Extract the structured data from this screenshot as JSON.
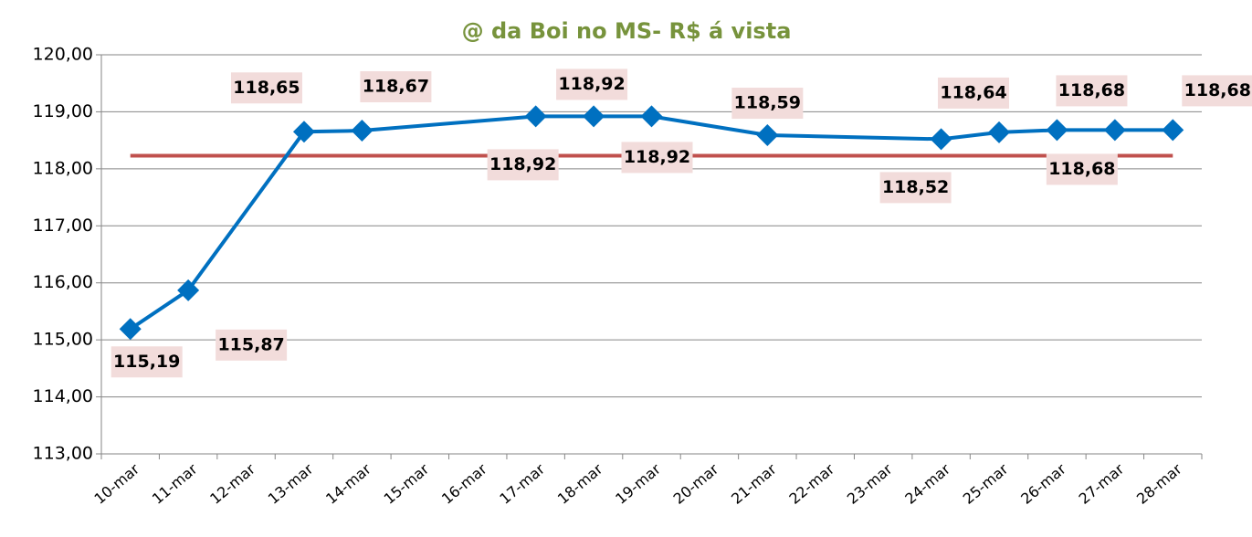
{
  "chart_data": {
    "type": "line",
    "title": "@ da Boi no MS- R$ á vista",
    "categories": [
      "10-mar",
      "11-mar",
      "12-mar",
      "13-mar",
      "14-mar",
      "15-mar",
      "16-mar",
      "17-mar",
      "18-mar",
      "19-mar",
      "20-mar",
      "21-mar",
      "22-mar",
      "23-mar",
      "24-mar",
      "25-mar",
      "26-mar",
      "27-mar",
      "28-mar"
    ],
    "series": [
      {
        "color": "#0070c0",
        "values": [
          115.19,
          115.87,
          null,
          118.65,
          118.67,
          null,
          null,
          118.92,
          118.92,
          118.92,
          null,
          118.59,
          null,
          null,
          118.52,
          118.64,
          118.68,
          118.68,
          118.68
        ],
        "value_labels": [
          "115,19",
          "115,87",
          null,
          "118,65",
          "118,67",
          null,
          null,
          "118,92",
          "118,92",
          "118,92",
          null,
          "118,59",
          null,
          null,
          "118,52",
          "118,64",
          "118,68",
          "118,68",
          "118,68"
        ]
      }
    ],
    "connect_gaps": true,
    "reference_line": {
      "value": 118.23,
      "color": "#c0504d"
    },
    "ylim": [
      113,
      120
    ],
    "yticks": [
      {
        "value": 113,
        "label": "113,00"
      },
      {
        "value": 114,
        "label": "114,00"
      },
      {
        "value": 115,
        "label": "115,00"
      },
      {
        "value": 116,
        "label": "116,00"
      },
      {
        "value": 117,
        "label": "117,00"
      },
      {
        "value": 118,
        "label": "118,00"
      },
      {
        "value": 119,
        "label": "119,00"
      },
      {
        "value": 120,
        "label": "120,00"
      }
    ],
    "grid": true
  }
}
